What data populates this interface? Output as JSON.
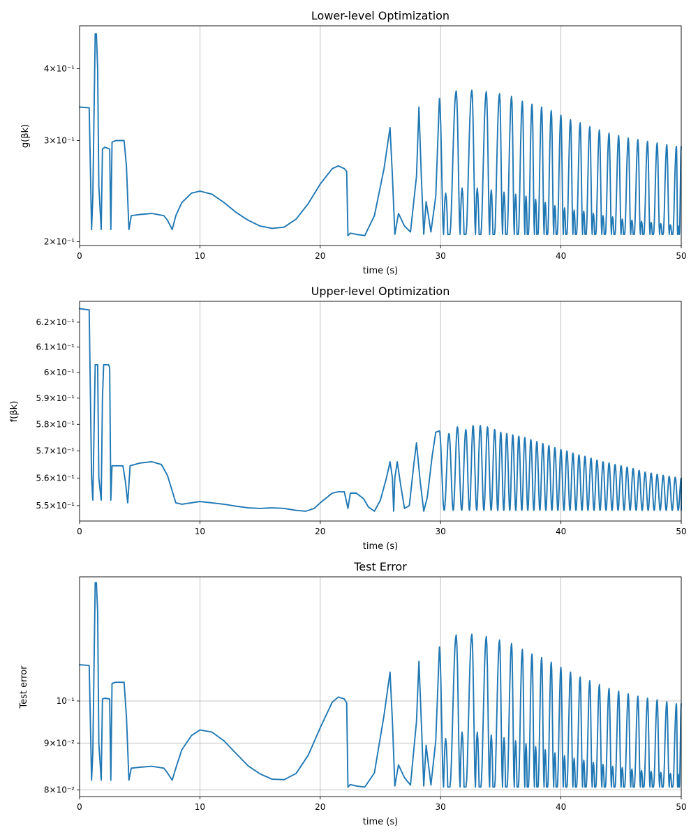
{
  "colors": {
    "series": "#1f77b4",
    "grid": "#b0b0b0",
    "axis": "#000000"
  },
  "chart_data": [
    {
      "type": "line",
      "title": "Lower-level Optimization",
      "xlabel": "time (s)",
      "ylabel": "g(βk)",
      "xlim": [
        0,
        50
      ],
      "yscale": "log",
      "ylim": [
        0.197,
        0.475
      ],
      "grid": "vertical",
      "xticks": [
        0,
        10,
        20,
        30,
        40,
        50
      ],
      "xtick_labels": [
        "0",
        "10",
        "20",
        "30",
        "40",
        "50"
      ],
      "yticks": [
        0.2,
        0.3,
        0.4
      ],
      "ytick_labels": [
        "2×10⁻¹",
        "3×10⁻¹",
        "4×10⁻¹"
      ],
      "series": [
        {
          "x": [
            0,
            0.8,
            1.0,
            1.1,
            1.3,
            1.4,
            1.5,
            1.6,
            1.8,
            1.9,
            2.1,
            2.5,
            2.6,
            2.7,
            3.0,
            3.7,
            3.9,
            4.1,
            4.3,
            5.0,
            6.0,
            7.0,
            7.3,
            7.7,
            8.0,
            8.5,
            9.3,
            10.0,
            11.0,
            12.0,
            13.0,
            14.0,
            15.0,
            16.0,
            17.0,
            18.0,
            19.0,
            20.0,
            21.0,
            21.5,
            22.0,
            22.2,
            22.3,
            22.5,
            23.0,
            23.7,
            24.5,
            25.3,
            25.8,
            26.0,
            26.2,
            26.5,
            27.0,
            27.5,
            28.0,
            28.2,
            28.4,
            28.6,
            28.8,
            29.2,
            29.6,
            29.9
          ],
          "y": [
            0.343,
            0.342,
            0.21,
            0.24,
            0.46,
            0.46,
            0.4,
            0.25,
            0.21,
            0.29,
            0.292,
            0.29,
            0.21,
            0.298,
            0.3,
            0.3,
            0.27,
            0.21,
            0.222,
            0.223,
            0.224,
            0.222,
            0.218,
            0.21,
            0.222,
            0.234,
            0.243,
            0.245,
            0.242,
            0.234,
            0.225,
            0.218,
            0.213,
            0.211,
            0.212,
            0.219,
            0.233,
            0.252,
            0.268,
            0.271,
            0.268,
            0.265,
            0.205,
            0.207,
            0.206,
            0.205,
            0.222,
            0.268,
            0.316,
            0.26,
            0.206,
            0.224,
            0.213,
            0.208,
            0.26,
            0.343,
            0.26,
            0.206,
            0.235,
            0.208,
            0.24,
            0.355
          ]
        },
        {
          "osc_period": 0.77,
          "osc_start": 29.9,
          "osc_end": 50,
          "peak_times": [
            29.9,
            31.3,
            32.6,
            33.8,
            34.9,
            35.9,
            36.8,
            37.6,
            38.4,
            39.2,
            40.0,
            40.8,
            41.6,
            42.4,
            43.2,
            44.0,
            44.8,
            45.6,
            46.4,
            47.2,
            48.0,
            48.8,
            49.6
          ],
          "peak_values": [
            0.355,
            0.366,
            0.367,
            0.365,
            0.362,
            0.358,
            0.351,
            0.347,
            0.343,
            0.338,
            0.332,
            0.326,
            0.322,
            0.317,
            0.313,
            0.309,
            0.306,
            0.303,
            0.301,
            0.299,
            0.297,
            0.295,
            0.293
          ],
          "trough_value": 0.206,
          "mid_peak_values": [
            0.243,
            0.248,
            0.248,
            0.246,
            0.244,
            0.242,
            0.24,
            0.237,
            0.234,
            0.231,
            0.229,
            0.227,
            0.226,
            0.224,
            0.222,
            0.221,
            0.219,
            0.218,
            0.217,
            0.216,
            0.215,
            0.214,
            0.213
          ]
        }
      ]
    },
    {
      "type": "line",
      "title": "Upper-level Optimization",
      "xlabel": "time (s)",
      "ylabel": "f(βk)",
      "xlim": [
        0,
        50
      ],
      "yscale": "log",
      "ylim": [
        0.5445,
        0.6285
      ],
      "grid": "vertical",
      "xticks": [
        0,
        10,
        20,
        30,
        40,
        50
      ],
      "xtick_labels": [
        "0",
        "10",
        "20",
        "30",
        "40",
        "50"
      ],
      "yticks": [
        0.55,
        0.56,
        0.57,
        0.58,
        0.59,
        0.6,
        0.61,
        0.62
      ],
      "ytick_labels": [
        "5.5×10⁻¹",
        "5.6×10⁻¹",
        "5.7×10⁻¹",
        "5.8×10⁻¹",
        "5.9×10⁻¹",
        "6×10⁻¹",
        "6.1×10⁻¹",
        "6.2×10⁻¹"
      ],
      "series": [
        {
          "x": [
            0,
            0.8,
            1.0,
            1.1,
            1.3,
            1.5,
            1.6,
            1.8,
            1.9,
            2.0,
            2.4,
            2.5,
            2.6,
            2.7,
            3.6,
            3.8,
            4.0,
            4.2,
            5.0,
            6.0,
            6.8,
            7.3,
            8.0,
            8.5,
            10.0,
            11.0,
            12.0,
            13.0,
            14.0,
            15.0,
            16.0,
            17.0,
            18.0,
            18.8,
            19.5,
            20.0,
            21.0,
            21.5,
            22.0,
            22.3,
            22.5,
            23.0,
            23.6,
            24.0,
            24.5,
            25.0,
            25.5,
            25.8,
            26.0,
            26.1,
            26.2,
            26.4,
            26.7,
            27.0,
            27.4,
            27.8,
            28.0,
            28.3,
            28.6,
            28.9,
            29.3,
            29.6,
            29.9
          ],
          "y": [
            0.6255,
            0.625,
            0.56,
            0.552,
            0.603,
            0.603,
            0.56,
            0.552,
            0.59,
            0.603,
            0.603,
            0.602,
            0.552,
            0.5645,
            0.5645,
            0.559,
            0.551,
            0.5645,
            0.5655,
            0.566,
            0.565,
            0.561,
            0.551,
            0.5505,
            0.5515,
            0.551,
            0.5505,
            0.5498,
            0.5492,
            0.549,
            0.5492,
            0.549,
            0.5483,
            0.548,
            0.549,
            0.551,
            0.5545,
            0.555,
            0.555,
            0.549,
            0.5545,
            0.5545,
            0.5525,
            0.5495,
            0.548,
            0.552,
            0.56,
            0.566,
            0.56,
            0.548,
            0.56,
            0.566,
            0.557,
            0.549,
            0.55,
            0.566,
            0.573,
            0.559,
            0.548,
            0.553,
            0.568,
            0.577,
            0.5775
          ]
        },
        {
          "osc_start": 29.9,
          "osc_end": 50,
          "peak_times": [
            29.9,
            30.7,
            31.4,
            32.1,
            32.7,
            33.3,
            33.9,
            34.5,
            35.0,
            35.5,
            36.0,
            36.5,
            37.0,
            37.5,
            38.0,
            38.5,
            39.0,
            39.5,
            40.0,
            40.5,
            41.0,
            41.5,
            42.0,
            42.5,
            43.0,
            43.5,
            44.0,
            44.5,
            45.0,
            45.5,
            46.0,
            46.5,
            47.0,
            47.5,
            48.0,
            48.5,
            49.0,
            49.5,
            50.0
          ],
          "peak_values": [
            0.5775,
            0.5765,
            0.579,
            0.578,
            0.5795,
            0.5795,
            0.579,
            0.578,
            0.577,
            0.5765,
            0.576,
            0.5755,
            0.575,
            0.5742,
            0.5735,
            0.5728,
            0.572,
            0.5712,
            0.5705,
            0.57,
            0.5692,
            0.5685,
            0.568,
            0.5673,
            0.5666,
            0.566,
            0.5655,
            0.565,
            0.5645,
            0.564,
            0.5635,
            0.5628,
            0.5622,
            0.5618,
            0.5614,
            0.561,
            0.5606,
            0.5603,
            0.56
          ],
          "trough_value": 0.5483
        }
      ]
    },
    {
      "type": "line",
      "title": "Test Error",
      "xlabel": "time (s)",
      "ylabel": "Test error",
      "xlim": [
        0,
        50
      ],
      "yscale": "log",
      "ylim": [
        0.0787,
        0.1365
      ],
      "grid": "both",
      "xticks": [
        0,
        10,
        20,
        30,
        40,
        50
      ],
      "xtick_labels": [
        "0",
        "10",
        "20",
        "30",
        "40",
        "50"
      ],
      "yticks": [
        0.08,
        0.09,
        0.1
      ],
      "ytick_labels": [
        "8×10⁻²",
        "9×10⁻²",
        "10⁻¹"
      ],
      "series": [
        {
          "x": [
            0,
            0.8,
            1.0,
            1.1,
            1.3,
            1.4,
            1.5,
            1.6,
            1.8,
            1.9,
            2.1,
            2.5,
            2.6,
            2.7,
            3.0,
            3.7,
            3.9,
            4.1,
            4.3,
            5.0,
            6.0,
            7.0,
            7.3,
            7.7,
            8.0,
            8.5,
            9.3,
            10.0,
            11.0,
            12.0,
            13.0,
            14.0,
            15.0,
            16.0,
            17.0,
            18.0,
            19.0,
            20.0,
            21.0,
            21.5,
            22.0,
            22.2,
            22.3,
            22.5,
            23.0,
            23.7,
            24.5,
            25.3,
            25.8,
            26.0,
            26.2,
            26.5,
            27.0,
            27.5,
            28.0,
            28.2,
            28.4,
            28.6,
            28.8,
            29.2,
            29.6,
            29.9
          ],
          "y": [
            0.1095,
            0.1093,
            0.082,
            0.088,
            0.1345,
            0.1345,
            0.125,
            0.09,
            0.082,
            0.1005,
            0.1007,
            0.1005,
            0.082,
            0.1045,
            0.1048,
            0.1048,
            0.096,
            0.082,
            0.0845,
            0.0847,
            0.0849,
            0.0845,
            0.0835,
            0.082,
            0.0845,
            0.0885,
            0.0917,
            0.093,
            0.0925,
            0.0905,
            0.0877,
            0.085,
            0.0833,
            0.0822,
            0.0821,
            0.0834,
            0.0873,
            0.0935,
            0.0997,
            0.101,
            0.1005,
            0.0995,
            0.0806,
            0.0811,
            0.0808,
            0.0806,
            0.0835,
            0.0965,
            0.1075,
            0.095,
            0.0808,
            0.0852,
            0.0825,
            0.081,
            0.095,
            0.1105,
            0.095,
            0.0808,
            0.0895,
            0.081,
            0.0905,
            0.1145
          ]
        },
        {
          "osc_start": 29.9,
          "osc_end": 50,
          "peak_times": [
            29.9,
            31.3,
            32.6,
            33.8,
            34.9,
            35.9,
            36.8,
            37.6,
            38.4,
            39.2,
            40.0,
            40.8,
            41.6,
            42.4,
            43.2,
            44.0,
            44.8,
            45.6,
            46.4,
            47.2,
            48.0,
            48.8,
            49.6
          ],
          "peak_values": [
            0.1145,
            0.118,
            0.1182,
            0.1175,
            0.1165,
            0.1155,
            0.1138,
            0.1125,
            0.1115,
            0.1102,
            0.1088,
            0.1075,
            0.1062,
            0.1052,
            0.1042,
            0.1032,
            0.1025,
            0.1018,
            0.1012,
            0.1007,
            0.1003,
            0.0998,
            0.0993
          ],
          "trough_value": 0.0806,
          "mid_peak_values": [
            0.091,
            0.0925,
            0.0925,
            0.0918,
            0.0912,
            0.0905,
            0.0898,
            0.0892,
            0.0885,
            0.0878,
            0.0872,
            0.0866,
            0.0862,
            0.0857,
            0.0853,
            0.0849,
            0.0846,
            0.0843,
            0.084,
            0.0838,
            0.0836,
            0.0834,
            0.0832
          ]
        }
      ]
    }
  ]
}
